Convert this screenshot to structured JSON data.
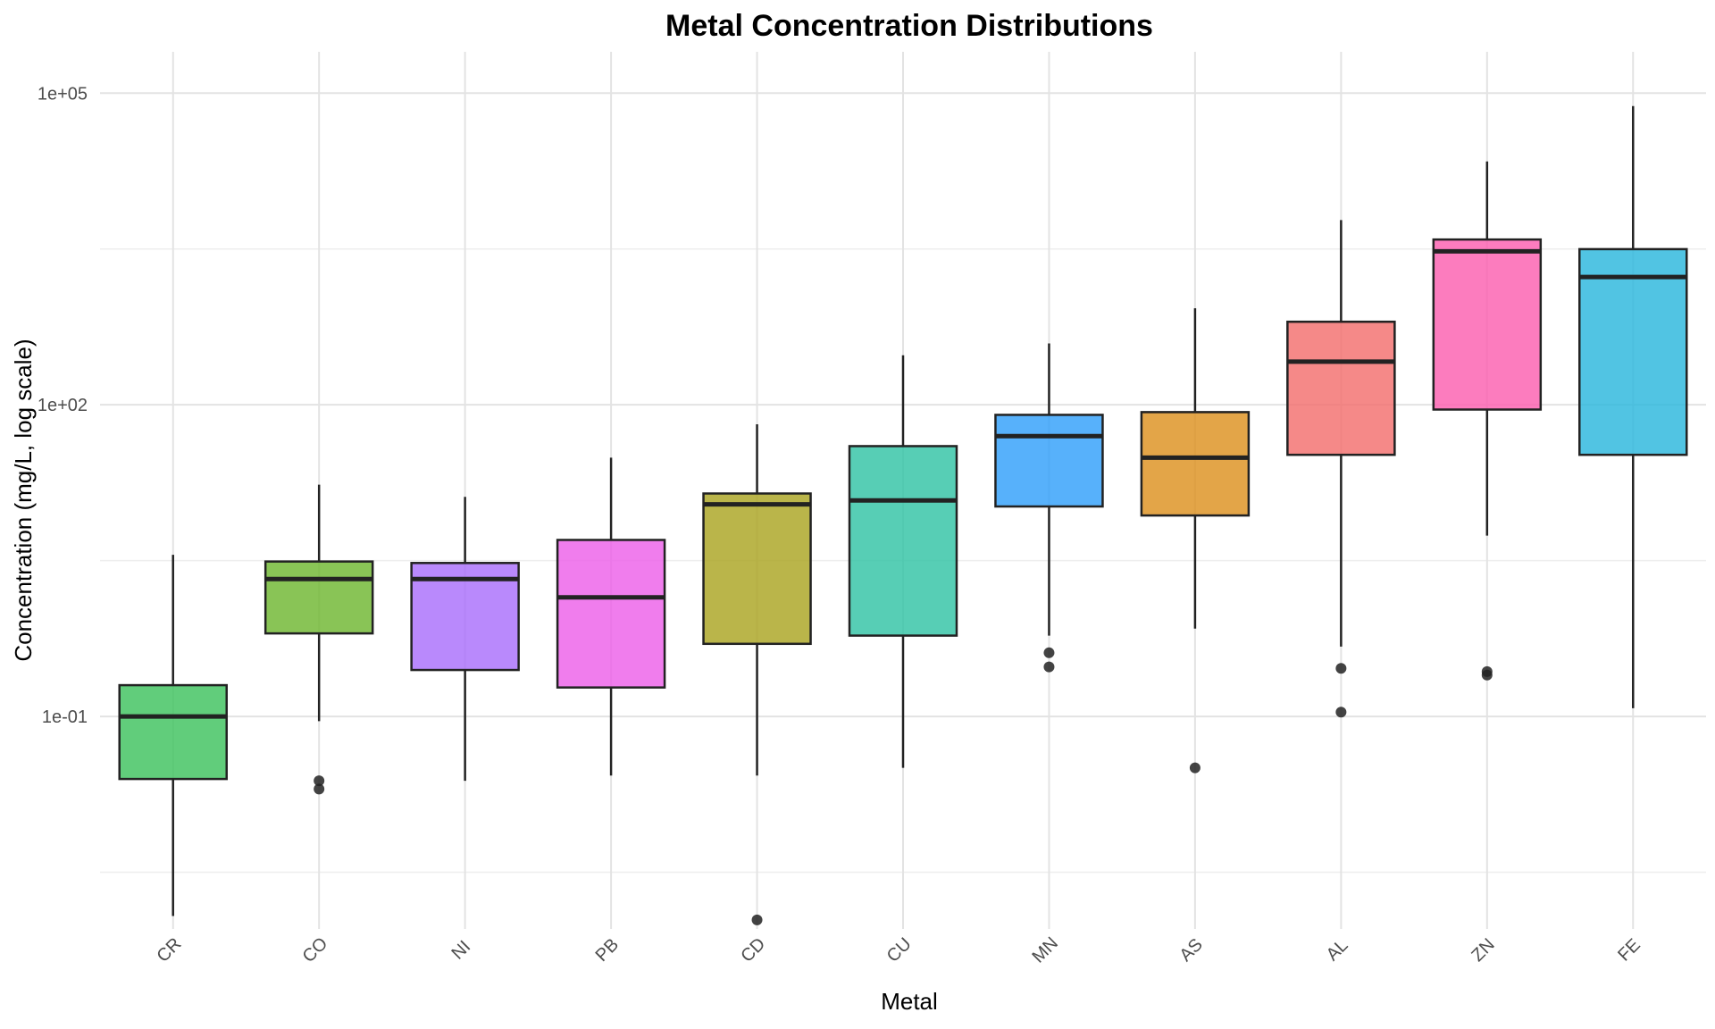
{
  "chart_data": {
    "type": "boxplot",
    "title": "Metal Concentration Distributions",
    "xlabel": "Metal",
    "ylabel": "Concentration (mg/L, log scale)",
    "y_scale": "log10",
    "ylim": [
      0.0009,
      250000
    ],
    "y_ticks": [
      {
        "value": 0.1,
        "label": "1e-01"
      },
      {
        "value": 100,
        "label": "1e+02"
      },
      {
        "value": 100000,
        "label": "1e+05"
      }
    ],
    "grid": true,
    "legend": "none",
    "categories": [
      "CR",
      "CO",
      "NI",
      "PB",
      "CD",
      "CU",
      "MN",
      "AS",
      "AL",
      "ZN",
      "FE"
    ],
    "boxes": [
      {
        "name": "CR",
        "color": "#39C05A",
        "whisker_low": 0.0012,
        "q1": 0.025,
        "median": 0.1,
        "q3": 0.2,
        "whisker_high": 3.6,
        "outliers": []
      },
      {
        "name": "CO",
        "color": "#6CB52C",
        "whisker_low": 0.09,
        "q1": 0.63,
        "median": 2.1,
        "q3": 3.1,
        "whisker_high": 17,
        "outliers": [
          0.024,
          0.02
        ]
      },
      {
        "name": "NI",
        "color": "#A86BFB",
        "whisker_low": 0.024,
        "q1": 0.28,
        "median": 2.1,
        "q3": 3.0,
        "whisker_high": 13,
        "outliers": []
      },
      {
        "name": "PB",
        "color": "#EC5DE9",
        "whisker_low": 0.027,
        "q1": 0.19,
        "median": 1.4,
        "q3": 5.0,
        "whisker_high": 31,
        "outliers": []
      },
      {
        "name": "CD",
        "color": "#A9A31D",
        "whisker_low": 0.027,
        "q1": 0.5,
        "median": 11,
        "q3": 14,
        "whisker_high": 65,
        "outliers": [
          0.0011
        ]
      },
      {
        "name": "CU",
        "color": "#2DC2A3",
        "whisker_low": 0.032,
        "q1": 0.6,
        "median": 12,
        "q3": 40,
        "whisker_high": 300,
        "outliers": []
      },
      {
        "name": "MN",
        "color": "#2D9EFA",
        "whisker_low": 0.6,
        "q1": 10.5,
        "median": 50,
        "q3": 80,
        "whisker_high": 390,
        "outliers": [
          0.41,
          0.3
        ]
      },
      {
        "name": "AS",
        "color": "#DC8E1A",
        "whisker_low": 0.7,
        "q1": 8.6,
        "median": 31,
        "q3": 85,
        "whisker_high": 850,
        "outliers": [
          0.032
        ]
      },
      {
        "name": "AL",
        "color": "#F26B6A",
        "whisker_low": 0.47,
        "q1": 33,
        "median": 260,
        "q3": 630,
        "whisker_high": 6000,
        "outliers": [
          0.29,
          0.11
        ]
      },
      {
        "name": "ZN",
        "color": "#FB5BAE",
        "whisker_low": 5.5,
        "q1": 90,
        "median": 3000,
        "q3": 3900,
        "whisker_high": 22000,
        "outliers": [
          0.27,
          0.25
        ]
      },
      {
        "name": "FE",
        "color": "#26B5DC",
        "whisker_low": 0.12,
        "q1": 33,
        "median": 1700,
        "q3": 3150,
        "whisker_high": 75000,
        "outliers": []
      }
    ]
  }
}
